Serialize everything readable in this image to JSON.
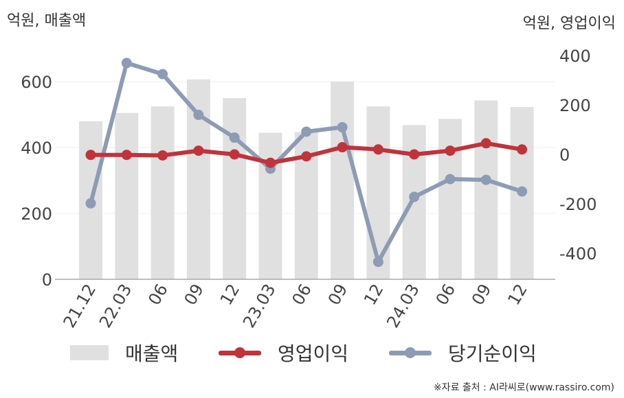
{
  "left_unit": "억원, 매출액",
  "right_unit": "억원, 영업이익",
  "source": "※자료 출처 : AI라씨로(www.rassiro.com)",
  "colors": {
    "revenue": "#e0e0e0",
    "operating_profit": "#c0333b",
    "net_income": "#8e9bb5",
    "grid": "#eeeeee",
    "axis": "#999999"
  },
  "legend": [
    {
      "label": "매출액",
      "kind": "bar",
      "color": "#e0e0e0"
    },
    {
      "label": "영업이익",
      "kind": "line",
      "color": "#c0333b"
    },
    {
      "label": "당기순이익",
      "kind": "line",
      "color": "#8e9bb5"
    }
  ],
  "chart_data": {
    "type": "bar+line",
    "categories": [
      "21.12",
      "22.03",
      "06",
      "09",
      "12",
      "23.03",
      "06",
      "09",
      "12",
      "24.03",
      "06",
      "09",
      "12"
    ],
    "y_left": {
      "range": [
        0,
        700
      ],
      "ticks": [
        0,
        200,
        400,
        600
      ],
      "label": "억원, 매출액"
    },
    "y_right": {
      "range": [
        -500,
        400
      ],
      "ticks": [
        -400,
        -200,
        0,
        200,
        400
      ],
      "label": "억원, 영업이익"
    },
    "grid": true,
    "legend_position": "bottom",
    "series": [
      {
        "name": "매출액",
        "type": "bar",
        "axis": "left",
        "values": [
          480,
          505,
          525,
          607,
          550,
          445,
          447,
          600,
          525,
          468,
          487,
          543,
          523
        ]
      },
      {
        "name": "영업이익",
        "type": "line",
        "axis": "right",
        "values": [
          -2,
          -2,
          -4,
          15,
          0,
          -34,
          -8,
          29,
          20,
          0,
          15,
          45,
          20
        ]
      },
      {
        "name": "당기순이익",
        "type": "line",
        "axis": "right",
        "values": [
          -198,
          370,
          325,
          160,
          68,
          -58,
          92,
          110,
          -435,
          -172,
          -100,
          -103,
          -150
        ]
      }
    ]
  }
}
